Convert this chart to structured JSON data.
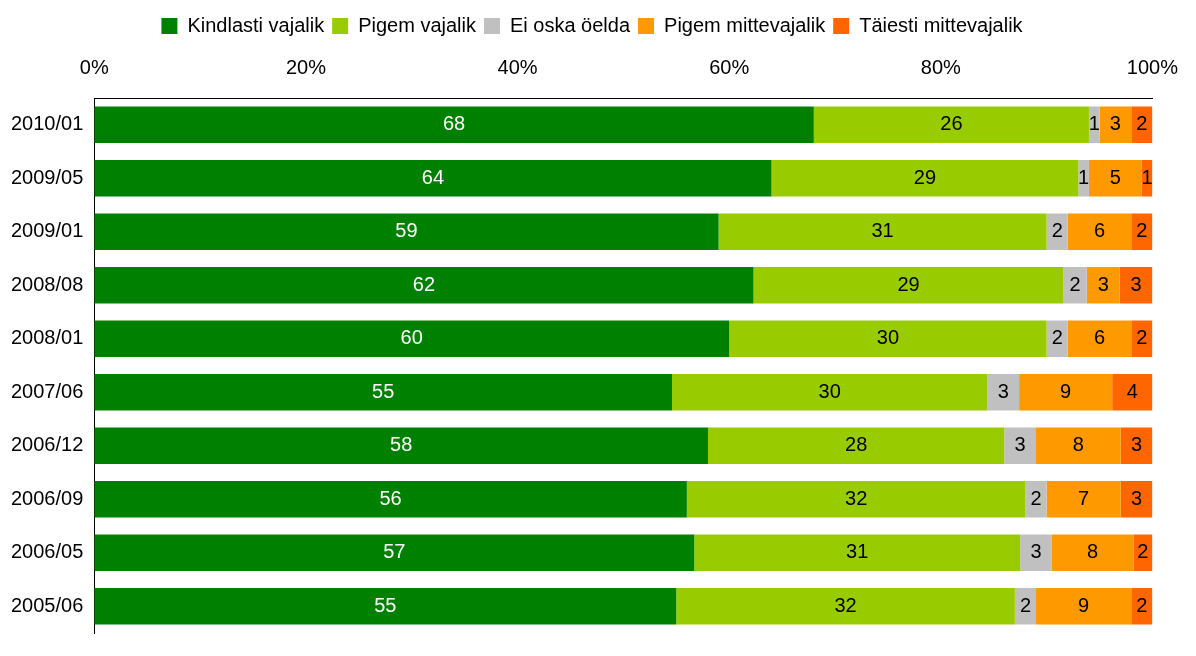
{
  "chart_data": {
    "type": "bar",
    "orientation": "horizontal",
    "stacked": true,
    "categories": [
      "2010/01",
      "2009/05",
      "2009/01",
      "2008/08",
      "2008/01",
      "2007/06",
      "2006/12",
      "2006/09",
      "2006/05",
      "2005/06"
    ],
    "series": [
      {
        "name": "Kindlasti vajalik",
        "color": "#008000",
        "values": [
          68,
          64,
          59,
          62.3,
          60,
          54.6,
          58,
          56,
          56.7,
          55
        ],
        "value_labels": [
          "68",
          "64",
          "59",
          "62",
          "60",
          "55",
          "58",
          "56",
          "57",
          "55"
        ]
      },
      {
        "name": "Pigem vajalik",
        "color": "#99cc00",
        "values": [
          26,
          29,
          31,
          29.3,
          30,
          29.8,
          28,
          32,
          30.8,
          32
        ],
        "value_labels": [
          "26",
          "29",
          "31",
          "29",
          "30",
          "30",
          "28",
          "32",
          "31",
          "32"
        ]
      },
      {
        "name": "Ei oska öelda",
        "color": "#c0c0c0",
        "values": [
          1,
          1,
          2,
          2.2,
          2,
          3,
          3,
          2,
          3,
          2
        ],
        "value_labels": [
          "1",
          "1",
          "2",
          "2",
          "2",
          "3",
          "3",
          "2",
          "3",
          "2"
        ]
      },
      {
        "name": "Pigem mittevajalik",
        "color": "#ff9900",
        "values": [
          3,
          5,
          6,
          3.1,
          6,
          8.8,
          8,
          7,
          7.7,
          9
        ],
        "value_labels": [
          "3",
          "5",
          "6",
          "3",
          "6",
          "9",
          "8",
          "7",
          "8",
          "9"
        ]
      },
      {
        "name": "Täiesti mittevajalik",
        "color": "#ff6600",
        "values": [
          2,
          1,
          2,
          3.1,
          2,
          3.8,
          3,
          3,
          1.8,
          2
        ],
        "value_labels": [
          "2",
          "1",
          "2",
          "3",
          "2",
          "4",
          "3",
          "3",
          "2",
          "2"
        ]
      }
    ],
    "xlim": [
      0,
      100
    ],
    "xticks": [
      {
        "value": 0,
        "label": "0%"
      },
      {
        "value": 20,
        "label": "20%"
      },
      {
        "value": 40,
        "label": "40%"
      },
      {
        "value": 60,
        "label": "60%"
      },
      {
        "value": 80,
        "label": "80%"
      },
      {
        "value": 100,
        "label": "100%"
      }
    ],
    "grid": false,
    "legend": "top"
  }
}
